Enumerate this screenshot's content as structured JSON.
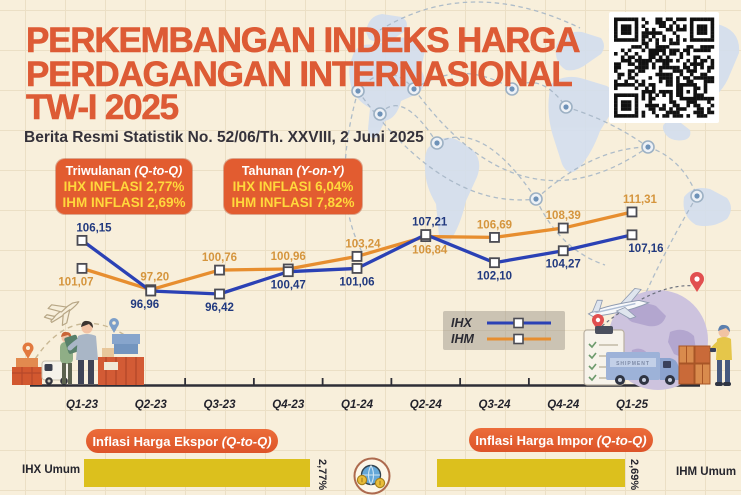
{
  "header": {
    "title_lines": [
      "PERKEMBANGAN INDEKS HARGA",
      "PERDAGANGAN INTERNASIONAL",
      "TW-I 2025"
    ],
    "subtitle": "Berita Resmi Statistik No. 52/06/Th. XXVIII, 2 Juni 2025"
  },
  "badges": [
    {
      "title_prefix": "Triwulanan ",
      "title_italic": "(Q-to-Q)",
      "line2": "IHX INFLASI 2,77%",
      "line3": "IHM INFLASI 2,69%"
    },
    {
      "title_prefix": "Tahunan ",
      "title_italic": "(Y-on-Y)",
      "line2": "IHX INFLASI 6,04%",
      "line3": "IHM INFLASI 7,82%"
    }
  ],
  "colors": {
    "title": "#dd5b35",
    "badge_bg": "#e25c30",
    "badge_value_text": "#ffd83c",
    "ihx_line": "#2b41b5",
    "ihx_label": "#21397f",
    "ihm_line": "#e78e2f",
    "ihm_label": "#d5953d",
    "axis": "#2e2e36",
    "bar_yellow": "#dcc01d",
    "banner_bg": "#e4602f",
    "background": "#f8efdb"
  },
  "chart_data": [
    {
      "type": "line",
      "title": "Perkembangan Indeks Harga Perdagangan Internasional",
      "categories": [
        "Q1-23",
        "Q2-23",
        "Q3-23",
        "Q4-23",
        "Q1-24",
        "Q2-24",
        "Q3-24",
        "Q4-24",
        "Q1-25"
      ],
      "ylim": [
        95,
        112
      ],
      "grid": false,
      "legend_position": "bottom-center",
      "series": [
        {
          "name": "IHX",
          "color": "#2b41b5",
          "label_color": "#21397f",
          "values": [
            106.15,
            96.96,
            96.42,
            100.47,
            101.06,
            107.21,
            102.1,
            104.27,
            107.16
          ],
          "label_pos": [
            "above",
            "below",
            "below",
            "below",
            "below",
            "above",
            "below",
            "below",
            "below"
          ],
          "label_dx": [
            12,
            -6,
            0,
            0,
            0,
            4,
            0,
            0,
            14
          ]
        },
        {
          "name": "IHM",
          "color": "#e78e2f",
          "label_color": "#d5953d",
          "values": [
            101.07,
            97.2,
            100.76,
            100.96,
            103.24,
            106.84,
            106.69,
            108.39,
            111.31
          ],
          "label_pos": [
            "below",
            "above",
            "above",
            "above",
            "above",
            "below",
            "above",
            "above",
            "above"
          ],
          "label_dx": [
            -6,
            4,
            0,
            0,
            6,
            4,
            0,
            0,
            8
          ]
        }
      ]
    },
    {
      "type": "bar",
      "title_prefix": "Inflasi Harga Ekspor ",
      "title_italic": "(Q-to-Q)",
      "categories": [
        "IHX Umum"
      ],
      "values": [
        2.77
      ],
      "value_labels": [
        "2,77%"
      ],
      "unit": "%"
    },
    {
      "type": "bar",
      "title_prefix": "Inflasi Harga Impor ",
      "title_italic": "(Q-to-Q)",
      "categories": [
        "IHM Umum"
      ],
      "values": [
        2.69
      ],
      "value_labels": [
        "2,69%"
      ],
      "unit": "%"
    }
  ]
}
